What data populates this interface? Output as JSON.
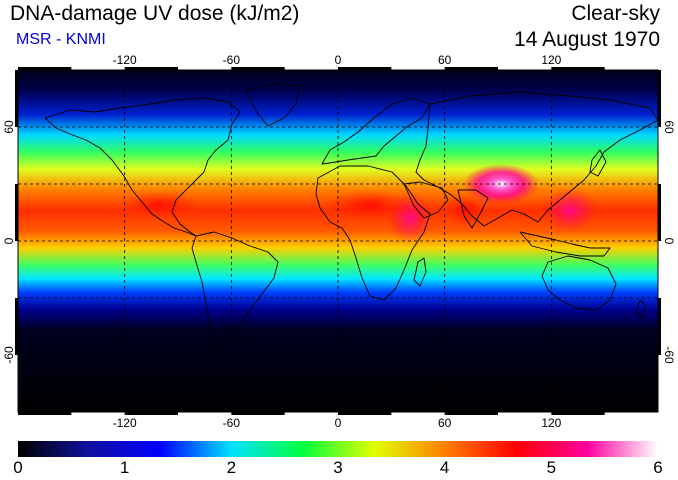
{
  "header": {
    "title": "DNA-damage UV dose (kJ/m2)",
    "credit": "MSR - KNMI",
    "condition": "Clear-sky",
    "date": "14 August 1970"
  },
  "map": {
    "projection": "equirectangular",
    "lon_range": [
      -180,
      180
    ],
    "lat_range": [
      -90,
      90
    ],
    "lon_ticks": [
      "-120",
      "-60",
      "0",
      "60",
      "120"
    ],
    "lon_tick_values": [
      -120,
      -60,
      0,
      60,
      120
    ],
    "lat_ticks": [
      "60",
      "0",
      "-60"
    ],
    "lat_tick_values": [
      60,
      0,
      -60
    ],
    "gridlines": "dashed",
    "gridline_lat": [
      -60,
      -30,
      0,
      30,
      60
    ],
    "gridline_lon": [
      -120,
      -60,
      0,
      60,
      120
    ],
    "coastlines": "black",
    "field": "DNA-damage UV dose",
    "units": "kJ/m2"
  },
  "colorbar": {
    "min": 0,
    "max": 6,
    "tick_labels": [
      "0",
      "1",
      "2",
      "3",
      "4",
      "5",
      "6"
    ],
    "colors": [
      "#000000",
      "#1010a0",
      "#0000ff",
      "#00e0ff",
      "#00ff40",
      "#e0ff00",
      "#ff8000",
      "#ff0000",
      "#ff00a0",
      "#ffffff"
    ]
  }
}
